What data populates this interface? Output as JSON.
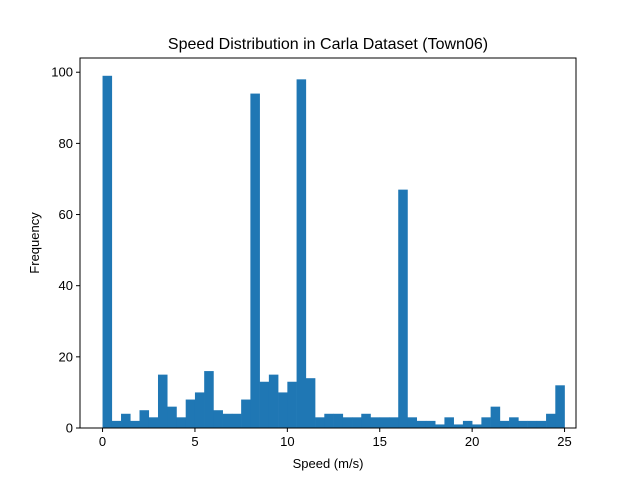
{
  "chart_data": {
    "type": "bar",
    "title": "Speed Distribution in Carla Dataset (Town06)",
    "xlabel": "Speed (m/s)",
    "ylabel": "Frequency",
    "xlim": [
      -1.22,
      25.62
    ],
    "ylim": [
      0,
      104
    ],
    "xticks": [
      0,
      5,
      10,
      15,
      20,
      25
    ],
    "yticks": [
      0,
      20,
      40,
      60,
      80,
      100
    ],
    "grid": false,
    "bar_color": "#1f77b4",
    "bin_start": 0,
    "bin_width": 0.5,
    "values": [
      99,
      2,
      4,
      2,
      5,
      3,
      15,
      6,
      3,
      8,
      10,
      16,
      5,
      4,
      4,
      8,
      94,
      13,
      15,
      10,
      13,
      98,
      14,
      3,
      4,
      4,
      3,
      3,
      4,
      3,
      3,
      3,
      67,
      3,
      2,
      2,
      1,
      3,
      1,
      2,
      1,
      3,
      6,
      2,
      3,
      2,
      2,
      2,
      4,
      12
    ]
  }
}
